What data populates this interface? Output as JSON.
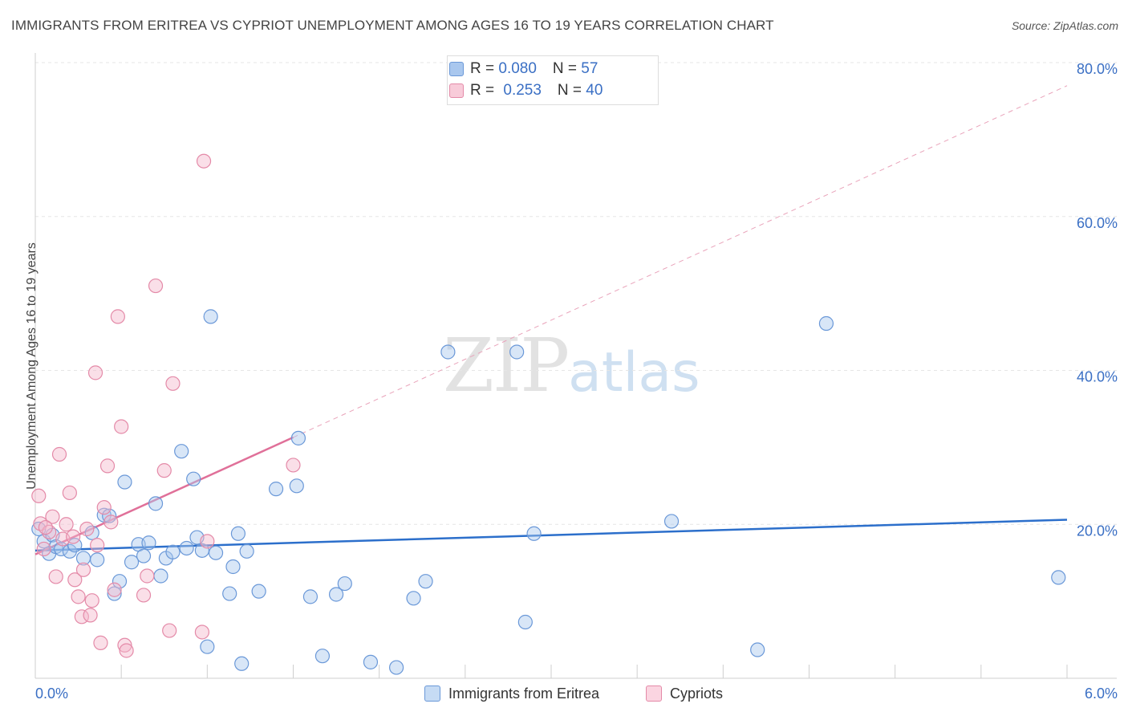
{
  "title": "IMMIGRANTS FROM ERITREA VS CYPRIOT UNEMPLOYMENT AMONG AGES 16 TO 19 YEARS CORRELATION CHART",
  "source": "Source: ZipAtlas.com",
  "watermark": {
    "zip": "ZIP",
    "atlas": "atlas"
  },
  "legend": {
    "rows": [
      {
        "r_label": "R = ",
        "r_value": "0.080",
        "n_label": "N = ",
        "n_value": "57"
      },
      {
        "r_label": "R = ",
        "r_value": "0.253",
        "n_label": "N = ",
        "n_value": "40"
      }
    ]
  },
  "bottom_legend": {
    "series1": "Immigrants from Eritrea",
    "series2": "Cypriots"
  },
  "colors": {
    "blue_fill": "#a9c7ee",
    "blue_stroke": "#6a98d8",
    "blue_line": "#2c6fcb",
    "pink_fill": "#f5b8cc",
    "pink_stroke": "#e48aa8",
    "pink_line": "#e07099",
    "axis_text": "#3a6fc4",
    "grid": "#e6e6e6"
  },
  "chart_data": {
    "type": "scatter",
    "title": "IMMIGRANTS FROM ERITREA VS CYPRIOT UNEMPLOYMENT AMONG AGES 16 TO 19 YEARS CORRELATION CHART",
    "xlabel": "",
    "ylabel": "Unemployment Among Ages 16 to 19 years",
    "xlim": [
      0,
      6
    ],
    "ylim": [
      0,
      80
    ],
    "x_tick_labels": [
      {
        "value": 0,
        "label": "0.0%"
      },
      {
        "value": 6,
        "label": "6.0%"
      }
    ],
    "y_tick_labels": [
      {
        "value": 20,
        "label": "20.0%"
      },
      {
        "value": 40,
        "label": "40.0%"
      },
      {
        "value": 60,
        "label": "60.0%"
      },
      {
        "value": 80,
        "label": "80.0%"
      }
    ],
    "series": [
      {
        "name": "Immigrants from Eritrea",
        "color": "#a9c7ee",
        "points": [
          [
            0.02,
            19.4
          ],
          [
            0.05,
            17.8
          ],
          [
            0.08,
            16.2
          ],
          [
            0.1,
            18.6
          ],
          [
            0.12,
            17.1
          ],
          [
            0.15,
            16.8
          ],
          [
            0.2,
            16.5
          ],
          [
            0.23,
            17.3
          ],
          [
            0.28,
            15.6
          ],
          [
            0.33,
            18.9
          ],
          [
            0.36,
            15.4
          ],
          [
            0.4,
            21.2
          ],
          [
            0.43,
            21.1
          ],
          [
            0.46,
            11.0
          ],
          [
            0.49,
            12.6
          ],
          [
            0.52,
            25.5
          ],
          [
            0.56,
            15.1
          ],
          [
            0.6,
            17.4
          ],
          [
            0.63,
            15.9
          ],
          [
            0.66,
            17.6
          ],
          [
            0.7,
            22.7
          ],
          [
            0.73,
            13.3
          ],
          [
            0.76,
            15.6
          ],
          [
            0.8,
            16.4
          ],
          [
            0.85,
            29.5
          ],
          [
            0.88,
            16.9
          ],
          [
            0.92,
            25.9
          ],
          [
            0.94,
            18.3
          ],
          [
            0.97,
            16.6
          ],
          [
            1.0,
            4.1
          ],
          [
            1.02,
            47.0
          ],
          [
            1.05,
            16.3
          ],
          [
            1.13,
            11.0
          ],
          [
            1.15,
            14.5
          ],
          [
            1.18,
            18.8
          ],
          [
            1.2,
            1.9
          ],
          [
            1.23,
            16.5
          ],
          [
            1.3,
            11.3
          ],
          [
            1.4,
            24.6
          ],
          [
            1.52,
            25.0
          ],
          [
            1.53,
            31.2
          ],
          [
            1.6,
            10.6
          ],
          [
            1.67,
            2.9
          ],
          [
            1.75,
            10.9
          ],
          [
            1.8,
            12.3
          ],
          [
            1.95,
            2.1
          ],
          [
            2.1,
            1.4
          ],
          [
            2.2,
            10.4
          ],
          [
            2.27,
            12.6
          ],
          [
            2.4,
            42.4
          ],
          [
            2.8,
            42.4
          ],
          [
            2.85,
            7.3
          ],
          [
            2.9,
            18.8
          ],
          [
            3.7,
            20.4
          ],
          [
            4.2,
            3.7
          ],
          [
            4.6,
            46.1
          ],
          [
            5.95,
            13.1
          ]
        ]
      },
      {
        "name": "Cypriots",
        "color": "#f5b8cc",
        "points": [
          [
            0.02,
            23.7
          ],
          [
            0.03,
            20.1
          ],
          [
            0.05,
            16.8
          ],
          [
            0.08,
            19.0
          ],
          [
            0.1,
            21.0
          ],
          [
            0.12,
            13.2
          ],
          [
            0.14,
            29.1
          ],
          [
            0.16,
            18.1
          ],
          [
            0.18,
            20.0
          ],
          [
            0.2,
            24.1
          ],
          [
            0.22,
            18.4
          ],
          [
            0.23,
            12.8
          ],
          [
            0.25,
            10.6
          ],
          [
            0.27,
            8.0
          ],
          [
            0.28,
            14.1
          ],
          [
            0.3,
            19.4
          ],
          [
            0.32,
            8.2
          ],
          [
            0.33,
            10.1
          ],
          [
            0.35,
            39.7
          ],
          [
            0.36,
            17.3
          ],
          [
            0.38,
            4.6
          ],
          [
            0.4,
            22.2
          ],
          [
            0.42,
            27.6
          ],
          [
            0.44,
            20.3
          ],
          [
            0.46,
            11.5
          ],
          [
            0.48,
            47.0
          ],
          [
            0.5,
            32.7
          ],
          [
            0.52,
            4.3
          ],
          [
            0.53,
            3.6
          ],
          [
            0.63,
            10.8
          ],
          [
            0.65,
            13.3
          ],
          [
            0.7,
            51.0
          ],
          [
            0.75,
            27.0
          ],
          [
            0.78,
            6.2
          ],
          [
            0.8,
            38.3
          ],
          [
            0.97,
            6.0
          ],
          [
            0.98,
            67.2
          ],
          [
            1.0,
            17.8
          ],
          [
            1.5,
            27.7
          ],
          [
            0.06,
            19.6
          ]
        ]
      }
    ],
    "trend_lines": [
      {
        "series": "Immigrants from Eritrea",
        "x": [
          0,
          6
        ],
        "y": [
          16.6,
          20.6
        ],
        "style": "solid"
      },
      {
        "series": "Cypriots",
        "x": [
          0,
          1.5
        ],
        "y": [
          16.1,
          31.3
        ],
        "style": "solid"
      },
      {
        "series": "Cypriots",
        "x": [
          1.5,
          6
        ],
        "y": [
          31.3,
          77.0
        ],
        "style": "dashed"
      }
    ]
  }
}
